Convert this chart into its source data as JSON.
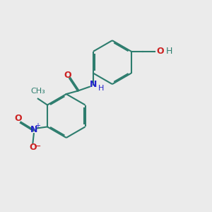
{
  "bg_color": "#ebebeb",
  "bond_color": "#2d7d6e",
  "N_color": "#2222cc",
  "O_color": "#cc2222",
  "lw": 1.5,
  "dbo": 0.055,
  "figsize": [
    3.0,
    3.0
  ],
  "dpi": 100,
  "xlim": [
    0,
    10
  ],
  "ylim": [
    0,
    10
  ]
}
